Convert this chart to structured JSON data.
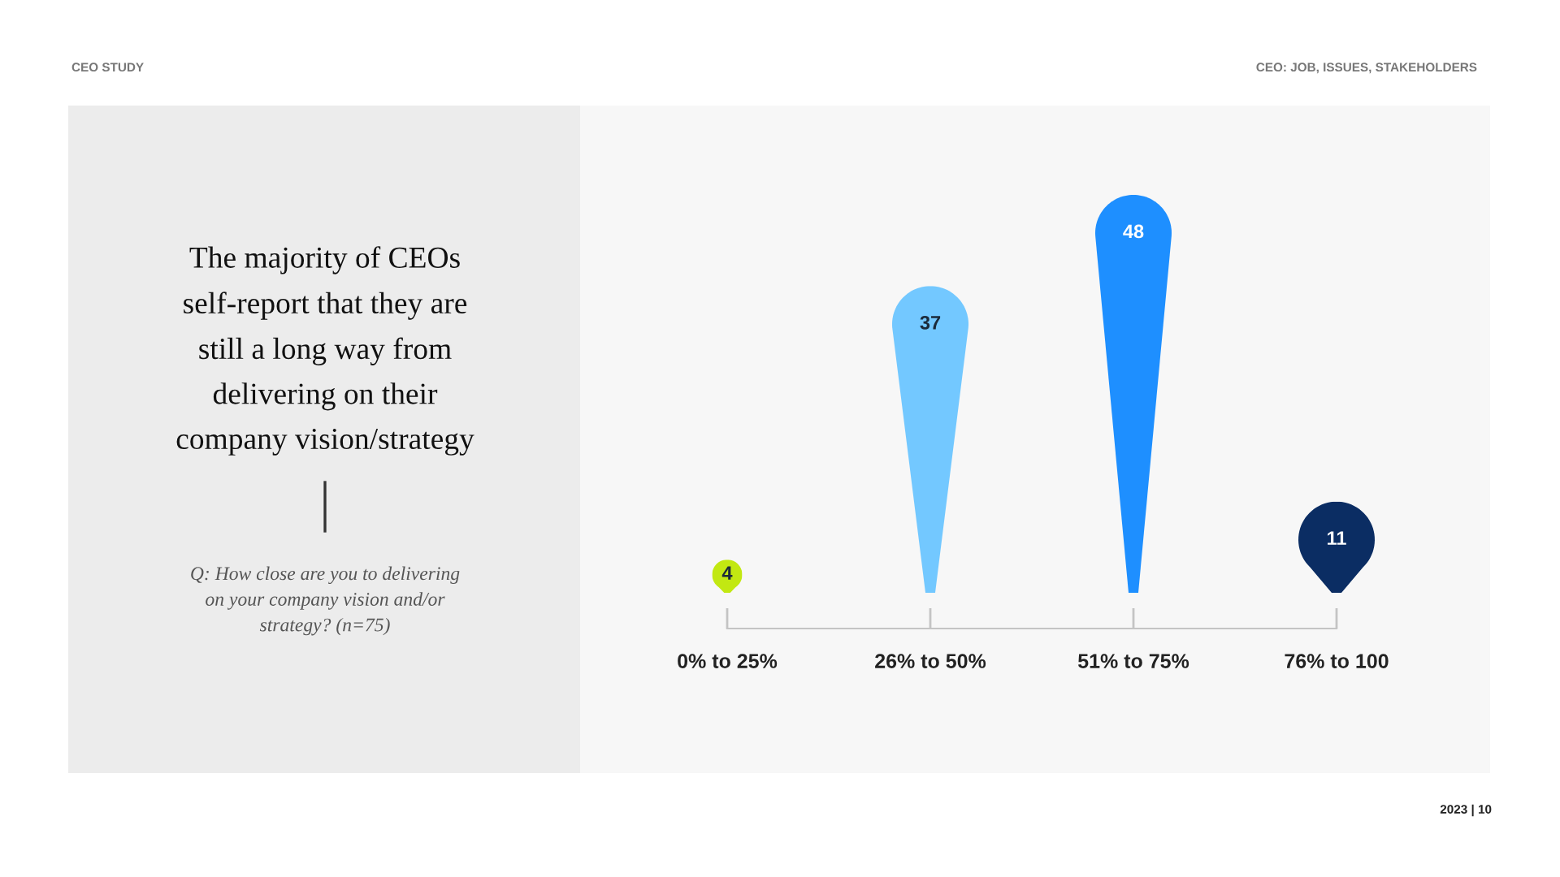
{
  "chart_data": {
    "type": "bar",
    "title": "The majority of CEOs\nself-report that they are\nstill a long way from\ndelivering on their\ncompany vision/strategy",
    "subtitle": "Q: How close are you to delivering\non your company vision and/or\nstrategy? (n=75)",
    "categories": [
      "0% to 25%",
      "26% to 50%",
      "51% to 75%",
      "76% to 100"
    ],
    "values": [
      4,
      37,
      48,
      11
    ],
    "colors": [
      "#c2e812",
      "#73c8ff",
      "#1e8fff",
      "#0b2d63"
    ],
    "data_labels": true,
    "annotations": [
      "CEO STUDY",
      "CEO: JOB, ISSUES, STAKEHOLDERS",
      "2023 | 10"
    ]
  }
}
